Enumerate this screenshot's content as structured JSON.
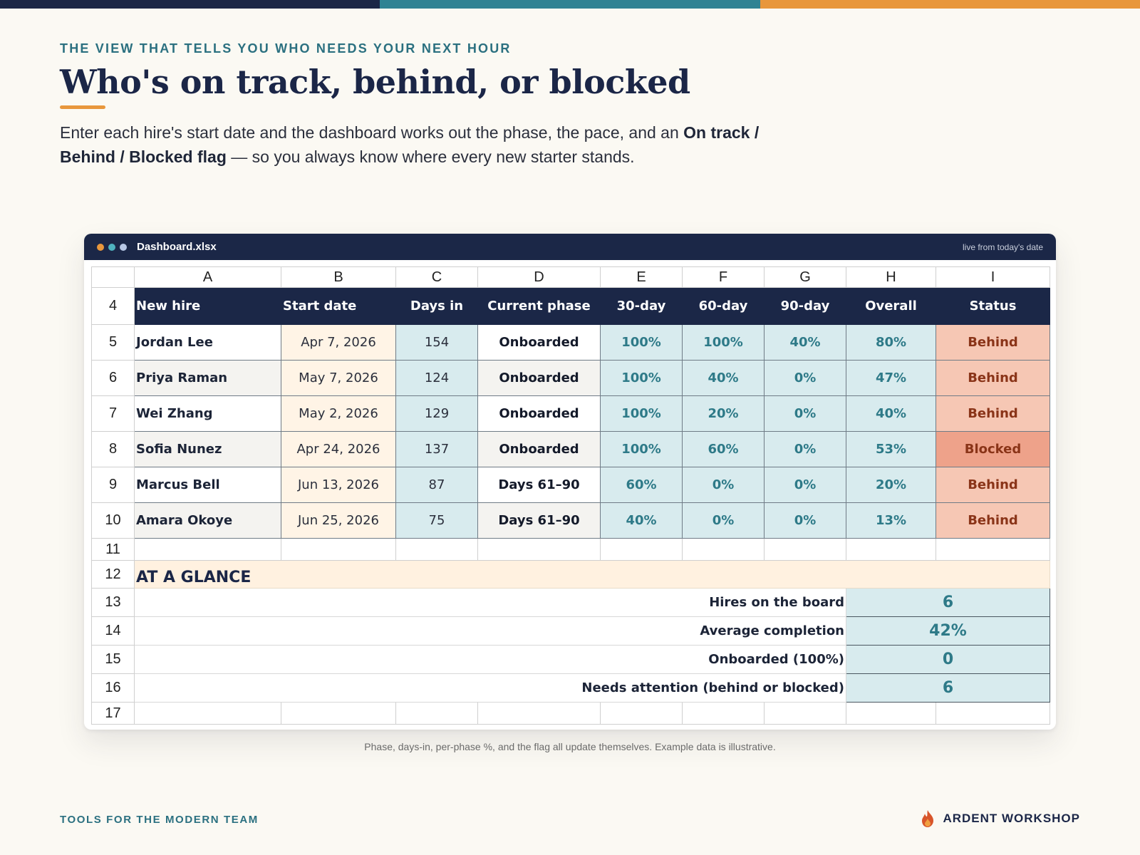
{
  "colors": {
    "bar_navy": "#1b2747",
    "bar_teal": "#2f8393",
    "bar_orange": "#e8973c",
    "status_behind": "#f6c7b4",
    "status_blocked": "#eea28a"
  },
  "header": {
    "eyebrow": "THE VIEW THAT TELLS YOU WHO NEEDS YOUR NEXT HOUR",
    "title": "Who's on track, behind, or blocked",
    "lede_1": "Enter each hire's start date and the dashboard works out the phase, the pace, and an ",
    "lede_bold": "On track / Behind / Blocked flag",
    "lede_2": " — so you always know where every new starter stands."
  },
  "window": {
    "filename": "Dashboard.xlsx",
    "live_note": "live from today's date",
    "dot_icons": [
      "dot-orange-icon",
      "dot-teal-icon",
      "dot-blue-icon"
    ]
  },
  "sheet": {
    "col_letters": [
      "A",
      "B",
      "C",
      "D",
      "E",
      "F",
      "G",
      "H",
      "I"
    ],
    "header_row": "4",
    "headers": [
      "New hire",
      "Start date",
      "Days in",
      "Current phase",
      "30-day",
      "60-day",
      "90-day",
      "Overall",
      "Status"
    ],
    "rows": [
      {
        "rn": "5",
        "name": "Jordan Lee",
        "start": "Apr 7, 2026",
        "days": "154",
        "phase": "Onboarded",
        "p30": "100%",
        "p60": "100%",
        "p90": "40%",
        "overall": "80%",
        "status": "Behind"
      },
      {
        "rn": "6",
        "name": "Priya Raman",
        "start": "May 7, 2026",
        "days": "124",
        "phase": "Onboarded",
        "p30": "100%",
        "p60": "40%",
        "p90": "0%",
        "overall": "47%",
        "status": "Behind"
      },
      {
        "rn": "7",
        "name": "Wei Zhang",
        "start": "May 2, 2026",
        "days": "129",
        "phase": "Onboarded",
        "p30": "100%",
        "p60": "20%",
        "p90": "0%",
        "overall": "40%",
        "status": "Behind"
      },
      {
        "rn": "8",
        "name": "Sofia Nunez",
        "start": "Apr 24, 2026",
        "days": "137",
        "phase": "Onboarded",
        "p30": "100%",
        "p60": "60%",
        "p90": "0%",
        "overall": "53%",
        "status": "Blocked"
      },
      {
        "rn": "9",
        "name": "Marcus Bell",
        "start": "Jun 13, 2026",
        "days": "87",
        "phase": "Days 61–90",
        "p30": "60%",
        "p60": "0%",
        "p90": "0%",
        "overall": "20%",
        "status": "Behind"
      },
      {
        "rn": "10",
        "name": "Amara Okoye",
        "start": "Jun 25, 2026",
        "days": "75",
        "phase": "Days 61–90",
        "p30": "40%",
        "p60": "0%",
        "p90": "0%",
        "overall": "13%",
        "status": "Behind"
      }
    ],
    "blank_row": "11",
    "glance_row": "12",
    "glance_label": "AT A GLANCE",
    "summary": [
      {
        "rn": "13",
        "label": "Hires on the board",
        "value": "6"
      },
      {
        "rn": "14",
        "label": "Average completion",
        "value": "42%"
      },
      {
        "rn": "15",
        "label": "Onboarded (100%)",
        "value": "0"
      },
      {
        "rn": "16",
        "label": "Needs attention (behind or blocked)",
        "value": "6"
      }
    ],
    "last_row": "17"
  },
  "caption": "Phase, days-in, per-phase %, and the flag all update themselves. Example data is illustrative.",
  "footer": {
    "tagline": "TOOLS FOR THE MODERN TEAM",
    "brand": "ARDENT WORKSHOP",
    "brand_icon": "flame-icon"
  }
}
